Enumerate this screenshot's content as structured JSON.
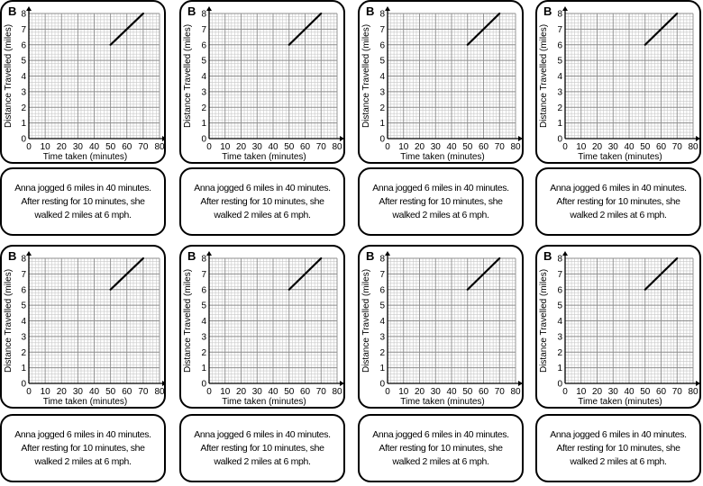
{
  "card_label": "B",
  "description": [
    "Anna jogged 6 miles in 40 minutes.",
    "After resting for 10 minutes, she",
    "walked 2 miles at 6 mph."
  ],
  "chart_data": {
    "type": "line",
    "title": "",
    "xlabel": "Time taken (minutes)",
    "ylabel": "Distance Travelled (miles)",
    "x_ticks": [
      "0",
      "10",
      "20",
      "30",
      "40",
      "50",
      "60",
      "70",
      "80"
    ],
    "y_ticks": [
      "0",
      "1",
      "2",
      "3",
      "4",
      "5",
      "6",
      "7",
      "8"
    ],
    "xlim": [
      0,
      80
    ],
    "ylim": [
      0,
      8
    ],
    "grid": true,
    "series": [
      {
        "name": "segment",
        "x": [
          50,
          70
        ],
        "y": [
          6,
          8
        ]
      }
    ]
  },
  "colors": {
    "grid_minor": "#c8c8c8",
    "grid_major": "#8c8c8c",
    "axis": "#000000",
    "line": "#000000"
  }
}
